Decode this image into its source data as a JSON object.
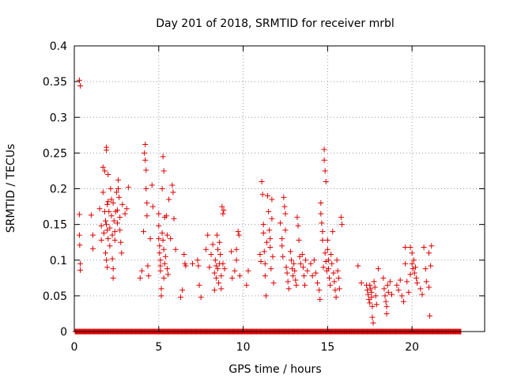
{
  "chart_data": {
    "type": "scatter",
    "title": "Day 201 of 2018, SRMTID for receiver mrbl",
    "xlabel": "GPS time / hours",
    "ylabel": "SRMTID / TECUs",
    "xlim": [
      0,
      24.3
    ],
    "ylim": [
      0,
      0.4
    ],
    "x_ticks": [
      0,
      5,
      10,
      15,
      20
    ],
    "x_tick_labels": [
      "0",
      "5",
      "10",
      "15",
      "20"
    ],
    "y_ticks": [
      0,
      0.05,
      0.1,
      0.15,
      0.2,
      0.25,
      0.3,
      0.35,
      0.4
    ],
    "y_tick_labels": [
      "0",
      "0.05",
      "0.1",
      "0.15",
      "0.2",
      "0.25",
      "0.3",
      "0.35",
      "0.4"
    ],
    "grid": true,
    "marker": "plus",
    "color": "#e00000",
    "series": [
      {
        "name": "SRMTID",
        "points": [
          [
            0.3,
            0.352
          ],
          [
            0.35,
            0.344
          ],
          [
            0.3,
            0.164
          ],
          [
            0.3,
            0.135
          ],
          [
            0.32,
            0.121
          ],
          [
            0.35,
            0.095
          ],
          [
            0.35,
            0.086
          ],
          [
            1.0,
            0.163
          ],
          [
            1.1,
            0.135
          ],
          [
            1.1,
            0.116
          ],
          [
            1.5,
            0.172
          ],
          [
            1.6,
            0.148
          ],
          [
            1.6,
            0.128
          ],
          [
            1.7,
            0.23
          ],
          [
            1.7,
            0.195
          ],
          [
            1.75,
            0.138
          ],
          [
            1.8,
            0.225
          ],
          [
            1.8,
            0.168
          ],
          [
            1.85,
            0.155
          ],
          [
            1.85,
            0.11
          ],
          [
            1.9,
            0.258
          ],
          [
            1.9,
            0.254
          ],
          [
            1.9,
            0.15
          ],
          [
            1.9,
            0.1
          ],
          [
            1.95,
            0.178
          ],
          [
            1.95,
            0.142
          ],
          [
            1.95,
            0.09
          ],
          [
            2.0,
            0.22
          ],
          [
            2.0,
            0.182
          ],
          [
            2.0,
            0.13
          ],
          [
            2.05,
            0.168
          ],
          [
            2.1,
            0.145
          ],
          [
            2.1,
            0.12
          ],
          [
            2.15,
            0.2
          ],
          [
            2.2,
            0.185
          ],
          [
            2.2,
            0.162
          ],
          [
            2.25,
            0.135
          ],
          [
            2.25,
            0.102
          ],
          [
            2.3,
            0.18
          ],
          [
            2.3,
            0.088
          ],
          [
            2.3,
            0.075
          ],
          [
            2.35,
            0.155
          ],
          [
            2.4,
            0.14
          ],
          [
            2.4,
            0.128
          ],
          [
            2.45,
            0.168
          ],
          [
            2.5,
            0.195
          ],
          [
            2.55,
            0.17
          ],
          [
            2.55,
            0.152
          ],
          [
            2.6,
            0.212
          ],
          [
            2.6,
            0.2
          ],
          [
            2.65,
            0.188
          ],
          [
            2.7,
            0.16
          ],
          [
            2.7,
            0.142
          ],
          [
            2.75,
            0.125
          ],
          [
            2.8,
            0.11
          ],
          [
            2.85,
            0.178
          ],
          [
            3.0,
            0.165
          ],
          [
            3.1,
            0.172
          ],
          [
            3.2,
            0.202
          ],
          [
            3.9,
            0.075
          ],
          [
            4.0,
            0.085
          ],
          [
            4.1,
            0.14
          ],
          [
            4.15,
            0.25
          ],
          [
            4.2,
            0.262
          ],
          [
            4.2,
            0.24
          ],
          [
            4.25,
            0.226
          ],
          [
            4.25,
            0.2
          ],
          [
            4.3,
            0.18
          ],
          [
            4.3,
            0.162
          ],
          [
            4.35,
            0.092
          ],
          [
            4.4,
            0.078
          ],
          [
            4.5,
            0.13
          ],
          [
            4.6,
            0.205
          ],
          [
            4.65,
            0.175
          ],
          [
            5.0,
            0.165
          ],
          [
            5.0,
            0.148
          ],
          [
            5.0,
            0.13
          ],
          [
            5.05,
            0.12
          ],
          [
            5.05,
            0.11
          ],
          [
            5.1,
            0.1
          ],
          [
            5.1,
            0.092
          ],
          [
            5.1,
            0.085
          ],
          [
            5.15,
            0.06
          ],
          [
            5.15,
            0.05
          ],
          [
            5.2,
            0.2
          ],
          [
            5.2,
            0.138
          ],
          [
            5.25,
            0.245
          ],
          [
            5.25,
            0.128
          ],
          [
            5.3,
            0.225
          ],
          [
            5.3,
            0.115
          ],
          [
            5.3,
            0.075
          ],
          [
            5.35,
            0.16
          ],
          [
            5.35,
            0.095
          ],
          [
            5.4,
            0.105
          ],
          [
            5.45,
            0.162
          ],
          [
            5.5,
            0.135
          ],
          [
            5.5,
            0.088
          ],
          [
            5.55,
            0.08
          ],
          [
            5.6,
            0.185
          ],
          [
            5.7,
            0.13
          ],
          [
            5.8,
            0.205
          ],
          [
            5.85,
            0.195
          ],
          [
            5.9,
            0.158
          ],
          [
            6.0,
            0.115
          ],
          [
            6.3,
            0.048
          ],
          [
            6.4,
            0.058
          ],
          [
            6.5,
            0.108
          ],
          [
            6.55,
            0.095
          ],
          [
            6.6,
            0.092
          ],
          [
            7.0,
            0.095
          ],
          [
            7.3,
            0.1
          ],
          [
            7.35,
            0.092
          ],
          [
            7.4,
            0.065
          ],
          [
            7.5,
            0.048
          ],
          [
            7.8,
            0.115
          ],
          [
            7.9,
            0.135
          ],
          [
            8.0,
            0.09
          ],
          [
            8.1,
            0.108
          ],
          [
            8.2,
            0.122
          ],
          [
            8.3,
            0.082
          ],
          [
            8.3,
            0.058
          ],
          [
            8.35,
            0.1
          ],
          [
            8.4,
            0.092
          ],
          [
            8.4,
            0.075
          ],
          [
            8.45,
            0.135
          ],
          [
            8.5,
            0.115
          ],
          [
            8.5,
            0.088
          ],
          [
            8.55,
            0.068
          ],
          [
            8.6,
            0.125
          ],
          [
            8.6,
            0.095
          ],
          [
            8.65,
            0.108
          ],
          [
            8.7,
            0.078
          ],
          [
            8.7,
            0.06
          ],
          [
            8.75,
            0.175
          ],
          [
            8.8,
            0.165
          ],
          [
            8.8,
            0.095
          ],
          [
            8.85,
            0.17
          ],
          [
            8.9,
            0.088
          ],
          [
            9.3,
            0.112
          ],
          [
            9.35,
            0.075
          ],
          [
            9.5,
            0.085
          ],
          [
            9.6,
            0.115
          ],
          [
            9.6,
            0.1
          ],
          [
            9.7,
            0.14
          ],
          [
            9.75,
            0.135
          ],
          [
            9.8,
            0.078
          ],
          [
            10.2,
            0.065
          ],
          [
            10.3,
            0.085
          ],
          [
            11.0,
            0.108
          ],
          [
            11.05,
            0.098
          ],
          [
            11.1,
            0.21
          ],
          [
            11.15,
            0.192
          ],
          [
            11.2,
            0.15
          ],
          [
            11.2,
            0.138
          ],
          [
            11.25,
            0.112
          ],
          [
            11.3,
            0.095
          ],
          [
            11.3,
            0.078
          ],
          [
            11.35,
            0.05
          ],
          [
            11.4,
            0.125
          ],
          [
            11.45,
            0.19
          ],
          [
            11.5,
            0.168
          ],
          [
            11.55,
            0.142
          ],
          [
            11.6,
            0.13
          ],
          [
            11.6,
            0.118
          ],
          [
            11.65,
            0.088
          ],
          [
            11.7,
            0.185
          ],
          [
            11.7,
            0.158
          ],
          [
            11.75,
            0.105
          ],
          [
            11.8,
            0.068
          ],
          [
            12.2,
            0.152
          ],
          [
            12.3,
            0.13
          ],
          [
            12.3,
            0.12
          ],
          [
            12.35,
            0.105
          ],
          [
            12.4,
            0.188
          ],
          [
            12.45,
            0.175
          ],
          [
            12.5,
            0.165
          ],
          [
            12.5,
            0.142
          ],
          [
            12.55,
            0.09
          ],
          [
            12.6,
            0.082
          ],
          [
            12.65,
            0.07
          ],
          [
            12.7,
            0.06
          ],
          [
            12.8,
            0.112
          ],
          [
            12.85,
            0.1
          ],
          [
            12.9,
            0.088
          ],
          [
            12.95,
            0.078
          ],
          [
            13.0,
            0.095
          ],
          [
            13.05,
            0.085
          ],
          [
            13.1,
            0.072
          ],
          [
            13.15,
            0.065
          ],
          [
            13.2,
            0.16
          ],
          [
            13.25,
            0.148
          ],
          [
            13.3,
            0.128
          ],
          [
            13.35,
            0.105
          ],
          [
            13.4,
            0.095
          ],
          [
            13.5,
            0.108
          ],
          [
            13.55,
            0.09
          ],
          [
            13.6,
            0.078
          ],
          [
            13.65,
            0.065
          ],
          [
            13.7,
            0.1
          ],
          [
            13.8,
            0.085
          ],
          [
            14.0,
            0.095
          ],
          [
            14.1,
            0.078
          ],
          [
            14.2,
            0.1
          ],
          [
            14.3,
            0.082
          ],
          [
            14.4,
            0.068
          ],
          [
            14.5,
            0.058
          ],
          [
            14.55,
            0.045
          ],
          [
            14.6,
            0.18
          ],
          [
            14.6,
            0.165
          ],
          [
            14.65,
            0.152
          ],
          [
            14.7,
            0.14
          ],
          [
            14.7,
            0.128
          ],
          [
            14.75,
            0.09
          ],
          [
            14.8,
            0.255
          ],
          [
            14.8,
            0.24
          ],
          [
            14.85,
            0.225
          ],
          [
            14.85,
            0.11
          ],
          [
            14.9,
            0.21
          ],
          [
            14.9,
            0.098
          ],
          [
            14.95,
            0.085
          ],
          [
            15.0,
            0.128
          ],
          [
            15.0,
            0.115
          ],
          [
            15.05,
            0.1
          ],
          [
            15.05,
            0.088
          ],
          [
            15.1,
            0.075
          ],
          [
            15.15,
            0.065
          ],
          [
            15.2,
            0.108
          ],
          [
            15.25,
            0.095
          ],
          [
            15.3,
            0.14
          ],
          [
            15.35,
            0.082
          ],
          [
            15.4,
            0.07
          ],
          [
            15.45,
            0.058
          ],
          [
            15.5,
            0.048
          ],
          [
            15.55,
            0.1
          ],
          [
            15.6,
            0.085
          ],
          [
            15.65,
            0.075
          ],
          [
            15.7,
            0.06
          ],
          [
            15.8,
            0.16
          ],
          [
            15.85,
            0.15
          ],
          [
            16.8,
            0.092
          ],
          [
            17.0,
            0.068
          ],
          [
            17.3,
            0.065
          ],
          [
            17.35,
            0.058
          ],
          [
            17.4,
            0.052
          ],
          [
            17.45,
            0.045
          ],
          [
            17.5,
            0.04
          ],
          [
            17.5,
            0.065
          ],
          [
            17.55,
            0.06
          ],
          [
            17.6,
            0.055
          ],
          [
            17.6,
            0.048
          ],
          [
            17.65,
            0.035
          ],
          [
            17.65,
            0.02
          ],
          [
            17.7,
            0.012
          ],
          [
            17.75,
            0.07
          ],
          [
            17.8,
            0.062
          ],
          [
            17.85,
            0.05
          ],
          [
            17.9,
            0.038
          ],
          [
            18.0,
            0.088
          ],
          [
            18.3,
            0.075
          ],
          [
            18.35,
            0.06
          ],
          [
            18.4,
            0.05
          ],
          [
            18.45,
            0.042
          ],
          [
            18.5,
            0.035
          ],
          [
            18.5,
            0.025
          ],
          [
            18.55,
            0.065
          ],
          [
            18.6,
            0.055
          ],
          [
            18.7,
            0.07
          ],
          [
            18.8,
            0.052
          ],
          [
            19.1,
            0.065
          ],
          [
            19.2,
            0.058
          ],
          [
            19.3,
            0.072
          ],
          [
            19.4,
            0.05
          ],
          [
            19.5,
            0.042
          ],
          [
            19.6,
            0.095
          ],
          [
            19.6,
            0.118
          ],
          [
            19.7,
            0.07
          ],
          [
            19.8,
            0.055
          ],
          [
            19.9,
            0.08
          ],
          [
            19.9,
            0.118
          ],
          [
            20.0,
            0.11
          ],
          [
            20.0,
            0.095
          ],
          [
            20.05,
            0.088
          ],
          [
            20.1,
            0.1
          ],
          [
            20.15,
            0.082
          ],
          [
            20.2,
            0.09
          ],
          [
            20.25,
            0.075
          ],
          [
            20.3,
            0.068
          ],
          [
            20.5,
            0.06
          ],
          [
            20.6,
            0.052
          ],
          [
            20.7,
            0.118
          ],
          [
            20.8,
            0.088
          ],
          [
            20.85,
            0.07
          ],
          [
            21.0,
            0.11
          ],
          [
            21.0,
            0.062
          ],
          [
            21.05,
            0.022
          ],
          [
            21.1,
            0.092
          ],
          [
            21.15,
            0.12
          ]
        ]
      }
    ],
    "zero_baseline_x_range": [
      0.05,
      22.9
    ]
  }
}
